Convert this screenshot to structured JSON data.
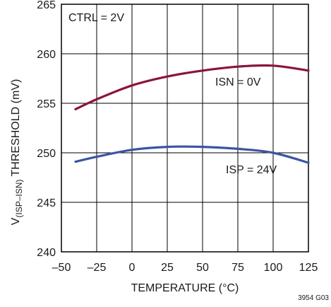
{
  "chart_data": {
    "type": "line",
    "xlabel": "TEMPERATURE (°C)",
    "ylabel_main": "V",
    "ylabel_sub": "(ISP–ISN)",
    "ylabel_rest": " THRESHOLD (mV)",
    "xlim": [
      -50,
      125
    ],
    "ylim": [
      240,
      265
    ],
    "x_ticks": [
      -50,
      -25,
      0,
      25,
      50,
      75,
      100,
      125
    ],
    "y_ticks": [
      240,
      245,
      250,
      255,
      260,
      265
    ],
    "x_tick_labels": [
      "–50",
      "–25",
      "0",
      "25",
      "50",
      "75",
      "100",
      "125"
    ],
    "y_tick_labels": [
      "240",
      "245",
      "250",
      "255",
      "260",
      "265"
    ],
    "grid": true,
    "annotations": {
      "ctrl": "CTRL = 2V",
      "isn": "ISN = 0V",
      "isp": "ISP = 24V",
      "fig_id": "3954 G03"
    },
    "series": [
      {
        "color": "#8a1538",
        "x": [
          -40,
          -25,
          0,
          25,
          50,
          75,
          100,
          125
        ],
        "y": [
          254.4,
          255.4,
          256.8,
          257.7,
          258.3,
          258.7,
          258.8,
          258.3
        ]
      },
      {
        "color": "#3b55a3",
        "x": [
          -40,
          -25,
          0,
          25,
          50,
          75,
          100,
          125
        ],
        "y": [
          249.1,
          249.6,
          250.3,
          250.6,
          250.6,
          250.4,
          250.0,
          249.0
        ]
      }
    ]
  }
}
